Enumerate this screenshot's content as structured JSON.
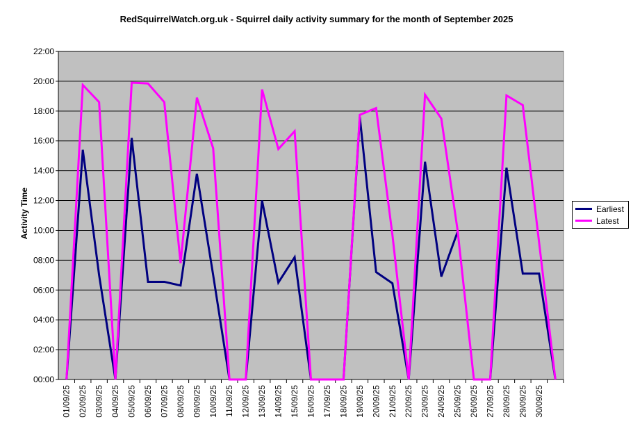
{
  "chart_data": {
    "type": "line",
    "title": "RedSquirrelWatch.org.uk - Squirrel daily activity summary for the month of September 2025",
    "xlabel": "",
    "ylabel": "Activity Time",
    "ylim": [
      0,
      22
    ],
    "yticks": [
      "00:00",
      "02:00",
      "04:00",
      "06:00",
      "08:00",
      "10:00",
      "12:00",
      "14:00",
      "16:00",
      "18:00",
      "20:00",
      "22:00"
    ],
    "categories": [
      "01/09/25",
      "02/09/25",
      "03/09/25",
      "04/09/25",
      "05/09/25",
      "06/09/25",
      "07/09/25",
      "08/09/25",
      "09/09/25",
      "10/09/25",
      "11/09/25",
      "12/09/25",
      "13/09/25",
      "14/09/25",
      "15/09/25",
      "16/09/25",
      "17/09/25",
      "18/09/25",
      "19/09/25",
      "20/09/25",
      "21/09/25",
      "22/09/25",
      "23/09/25",
      "24/09/25",
      "25/09/25",
      "26/09/25",
      "27/09/25",
      "28/09/25",
      "29/09/25",
      "30/09/25",
      ""
    ],
    "grid": true,
    "legend_position": "right",
    "series": [
      {
        "name": "Earliest",
        "color": "#000080",
        "values": [
          0,
          15.4,
          7.0,
          0,
          16.2,
          6.55,
          6.55,
          6.3,
          13.8,
          7.0,
          0,
          0,
          12.0,
          6.5,
          8.2,
          0,
          0,
          0,
          17.6,
          7.2,
          6.45,
          0,
          14.6,
          6.9,
          9.9,
          null,
          0,
          14.2,
          7.1,
          7.1,
          0
        ]
      },
      {
        "name": "Latest",
        "color": "#FF00FF",
        "values": [
          0,
          19.75,
          18.6,
          0,
          19.9,
          19.85,
          18.6,
          7.8,
          18.9,
          15.5,
          0,
          0,
          19.45,
          15.45,
          16.65,
          0,
          0,
          0,
          17.75,
          18.2,
          9.7,
          0,
          19.1,
          17.5,
          10.0,
          0,
          0,
          19.05,
          18.4,
          9.2,
          0
        ]
      }
    ]
  }
}
